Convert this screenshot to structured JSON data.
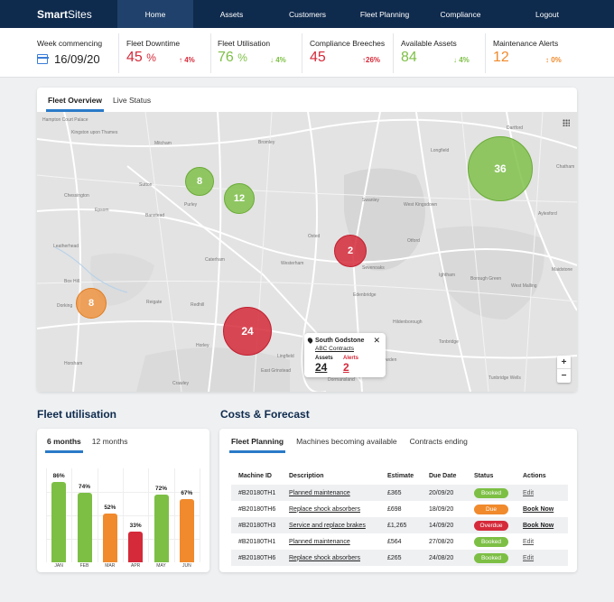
{
  "nav": {
    "brand_bold": "Smart",
    "brand_rest": "Sites",
    "items": [
      {
        "label": "Home",
        "active": true
      },
      {
        "label": "Assets"
      },
      {
        "label": "Customers"
      },
      {
        "label": "Fleet Planning"
      },
      {
        "label": "Compliance"
      },
      {
        "label": "Logout"
      }
    ]
  },
  "kpis": {
    "week_label": "Week commencing",
    "week_date": "16/09/20",
    "downtime": {
      "label": "Fleet Downtime",
      "value": "45",
      "unit": "%",
      "trend": "↑ 4%",
      "color": "#d52a3a"
    },
    "utilisation": {
      "label": "Fleet Utilisation",
      "value": "76",
      "unit": "%",
      "trend": "↓ 4%",
      "color": "#7dbf45"
    },
    "compliance": {
      "label": "Compliance Breeches",
      "value": "45",
      "trend": "↑26%",
      "color": "#d52a3a"
    },
    "assets": {
      "label": "Available Assets",
      "value": "84",
      "trend": "↓ 4%",
      "color": "#7dbf45"
    },
    "alerts": {
      "label": "Maintenance Alerts",
      "value": "12",
      "trend": "↕ 0%",
      "color": "#f08a2c"
    }
  },
  "map": {
    "tabs": [
      "Fleet Overview",
      "Live Status"
    ],
    "places": [
      "Hampton Court Palace",
      "Mitcham",
      "Bromley",
      "Sutton",
      "Epsom",
      "Leatherhead",
      "Purley",
      "Caterham",
      "Oxted",
      "Dorking",
      "Reigate",
      "Redhill",
      "Edenbridge",
      "Tonbridge",
      "Sevenoaks",
      "Westerham",
      "Swanley",
      "Longfield",
      "West Kingsdown",
      "Chatham",
      "Maidstone",
      "Horley",
      "Lingfield",
      "Crawley",
      "Horsham",
      "Dartford",
      "Banstead",
      "Kingston upon Thames",
      "Chessington",
      "Box Hill",
      "Otford",
      "Borough Green",
      "West Malling",
      "Aylesford",
      "Ightham",
      "Hildenborough",
      "Cowden",
      "Dormansland",
      "East Grinstead",
      "Tunbridge Wells"
    ],
    "popup": {
      "title": "South Godstone",
      "subtitle": "ABC Contracts",
      "assets_label": "Assets",
      "assets_value": "24",
      "alerts_label": "Alerts",
      "alerts_value": "2",
      "close": "✕"
    },
    "zoom_in": "+",
    "zoom_out": "−",
    "bubbles": [
      "8",
      "12",
      "36",
      "2",
      "8",
      "24"
    ]
  },
  "utilisation": {
    "title": "Fleet utilisation",
    "tabs": [
      "6 months",
      "12 months"
    ]
  },
  "chart_data": {
    "type": "bar",
    "categories": [
      "JAN",
      "FEB",
      "MAR",
      "APR",
      "MAY",
      "JUN"
    ],
    "values": [
      86,
      74,
      52,
      33,
      72,
      67
    ],
    "labels": [
      "86%",
      "74%",
      "52%",
      "33%",
      "72%",
      "67%"
    ],
    "colors": [
      "#7dbf45",
      "#7dbf45",
      "#f08a2c",
      "#d52a3a",
      "#7dbf45",
      "#f08a2c"
    ],
    "ylim": [
      0,
      100
    ],
    "grid": true
  },
  "costs": {
    "title": "Costs & Forecast",
    "tabs": [
      "Fleet Planning",
      "Machines becoming available",
      "Contracts ending"
    ],
    "headers": [
      "Machine ID",
      "Description",
      "Estimate",
      "Due Date",
      "Status",
      "Actions"
    ],
    "rows": [
      {
        "id": "#B20180TH1",
        "desc": "Planned maintenance",
        "estimate": "£365",
        "due": "20/09/20",
        "status": "Booked",
        "status_color": "#7dbf45",
        "action": "Edit"
      },
      {
        "id": "#B20180TH6",
        "desc": "Replace shock absorbers",
        "estimate": "£698",
        "due": "18/09/20",
        "status": "Due",
        "status_color": "#f08a2c",
        "action": "Book Now"
      },
      {
        "id": "#B20180TH3",
        "desc": "Service and replace brakes",
        "estimate": "£1,265",
        "due": "14/09/20",
        "status": "Overdue",
        "status_color": "#d52a3a",
        "action": "Book Now"
      },
      {
        "id": "#B20180TH1",
        "desc": "Planned maintenance",
        "estimate": "£564",
        "due": "27/08/20",
        "status": "Booked",
        "status_color": "#7dbf45",
        "action": "Edit"
      },
      {
        "id": "#B20180TH6",
        "desc": "Replace shock absorbers",
        "estimate": "£265",
        "due": "24/08/20",
        "status": "Booked",
        "status_color": "#7dbf45",
        "action": "Edit"
      }
    ]
  }
}
